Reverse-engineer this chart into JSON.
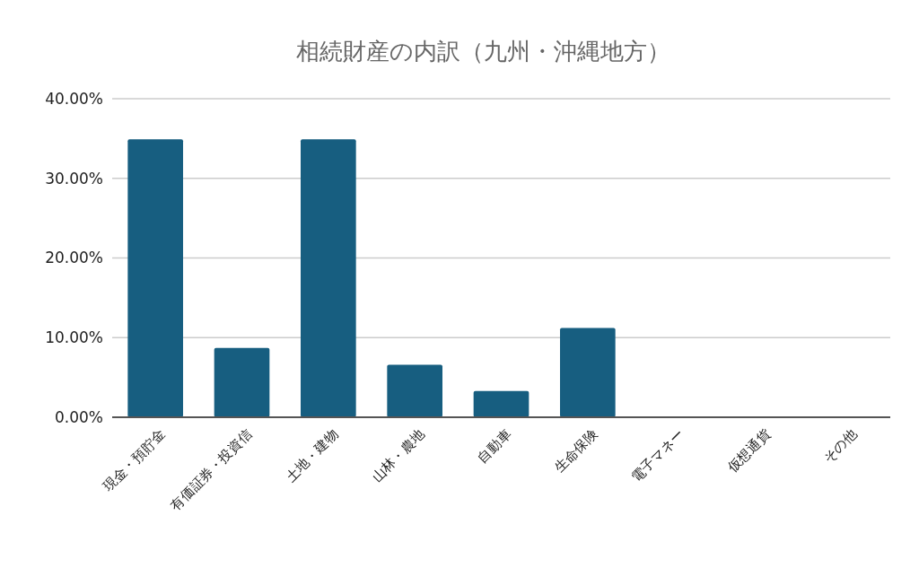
{
  "chart_data": {
    "type": "bar",
    "title": "相続財産の内訳（九州・沖縄地方）",
    "categories": [
      "現金・預貯金",
      "有価証券・投資信",
      "土地・建物",
      "山林・農地",
      "自動車",
      "生命保険",
      "電子マネー",
      "仮想通貨",
      "その他"
    ],
    "values": [
      34.9,
      8.7,
      34.9,
      6.6,
      3.3,
      11.2,
      0.1,
      0.1,
      0
    ],
    "color": "#175e80",
    "ylim": [
      0,
      40
    ],
    "yticks": [
      {
        "value": 0,
        "label": "0.00%"
      },
      {
        "value": 10,
        "label": "10.00%"
      },
      {
        "value": 20,
        "label": "20.00%"
      },
      {
        "value": 30,
        "label": "30.00%"
      },
      {
        "value": 40,
        "label": "40.00%"
      }
    ],
    "grid": "y"
  }
}
